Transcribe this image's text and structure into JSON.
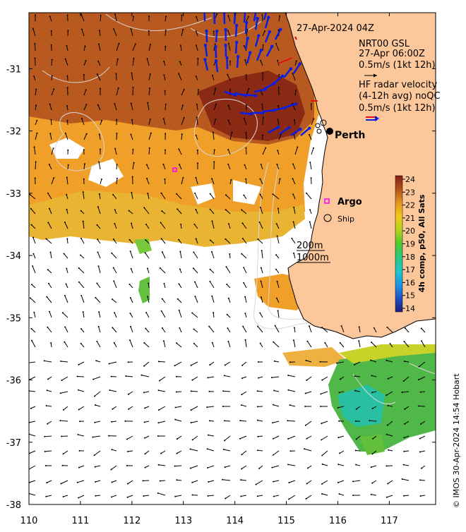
{
  "map": {
    "timestamp": "27-Apr-2024 04Z",
    "wind_product": {
      "name": "NRT00 GSL",
      "time": "27-Apr 06:00Z",
      "scale": "0.5m/s (1kt 12h)"
    },
    "radar": {
      "line1": "HF radar velocity",
      "line2": "(4-12h avg) noQC",
      "scale": "0.5m/s (1kt 12h)"
    },
    "places": {
      "city": "Perth",
      "argo": "Argo",
      "ship": "Ship"
    },
    "isobaths": {
      "shallow": "200m",
      "deep": "1000m"
    },
    "colorbar": {
      "label": "4h comp, p50, All Sats",
      "ticks": [
        "24",
        "23",
        "22",
        "21",
        "20",
        "19",
        "18",
        "17",
        "16",
        "15",
        "14"
      ],
      "vmin": 14,
      "vmax": 24
    },
    "x_ticks": [
      "110",
      "111",
      "112",
      "113",
      "114",
      "115",
      "116",
      "117"
    ],
    "y_ticks": [
      "-31",
      "-32",
      "-33",
      "-34",
      "-35",
      "-36",
      "-37",
      "-38"
    ],
    "lon_range": [
      110,
      117.9
    ],
    "lat_range": [
      -38,
      -30.1
    ],
    "credit": "© IMOS 30-Apr-2024 14:54 Hobart",
    "colors": {
      "land": "#fcc89b",
      "radar_vectors": "#0a1ee6",
      "argo": "#ff00ff",
      "legend_red": "#e01010"
    }
  }
}
